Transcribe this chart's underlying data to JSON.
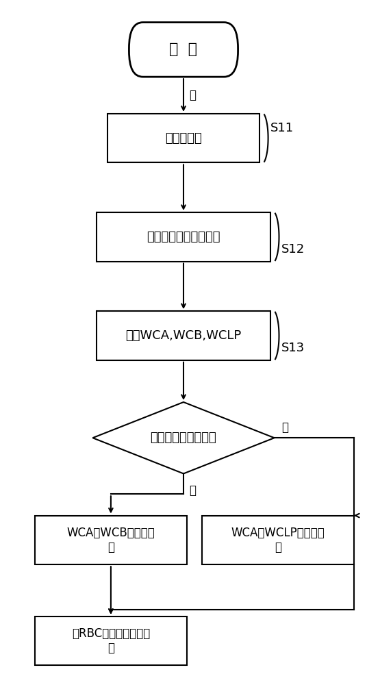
{
  "bg_color": "#ffffff",
  "line_color": "#000000",
  "text_color": "#000000",
  "font_size": 13,
  "label_font_size": 12,
  "fig_w": 5.36,
  "fig_h": 10.0,
  "start_text": "开  始",
  "s11_text": "上电初始化",
  "s12_text": "计算列车的速度和位置",
  "s13_text": "计算WCA,WCB,WCLP",
  "diamond_text": "列车是否具有完整性",
  "yes_box_text": "WCA到WCB为占用足\n迹",
  "no_box_text": "WCA到WCLP为占用足\n迹",
  "end_box_text": "向RBC报告闭塞分区占\n用",
  "s11_label": "S11",
  "s12_label": "S12",
  "s13_label": "S13",
  "yes_label": "是",
  "no_label": "否",
  "arrow_start_label": "是"
}
